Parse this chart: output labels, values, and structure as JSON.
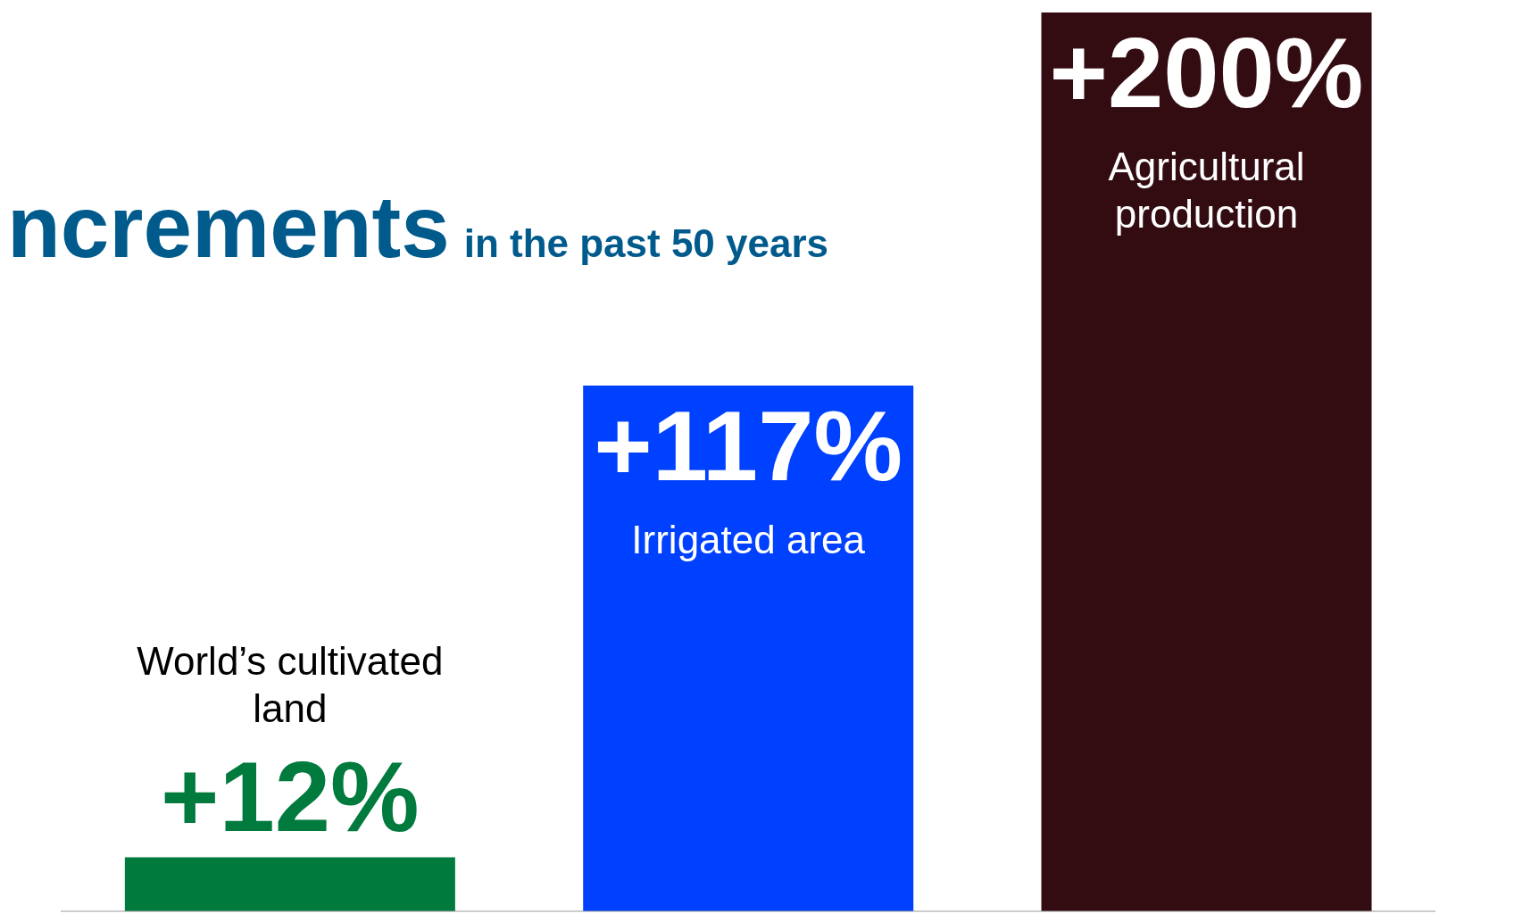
{
  "chart_data": {
    "type": "bar",
    "title": "ncrements",
    "subtitle": "in the past 50 years",
    "categories": [
      "World’s cultivated land",
      "Irrigated area",
      "Agricultural production"
    ],
    "values": [
      12,
      117,
      200
    ],
    "colors": [
      "#007a3d",
      "#0040ff",
      "#330c12"
    ],
    "value_labels": [
      "+12%",
      "+117%",
      "+200%"
    ],
    "grid": false,
    "legend": false
  }
}
